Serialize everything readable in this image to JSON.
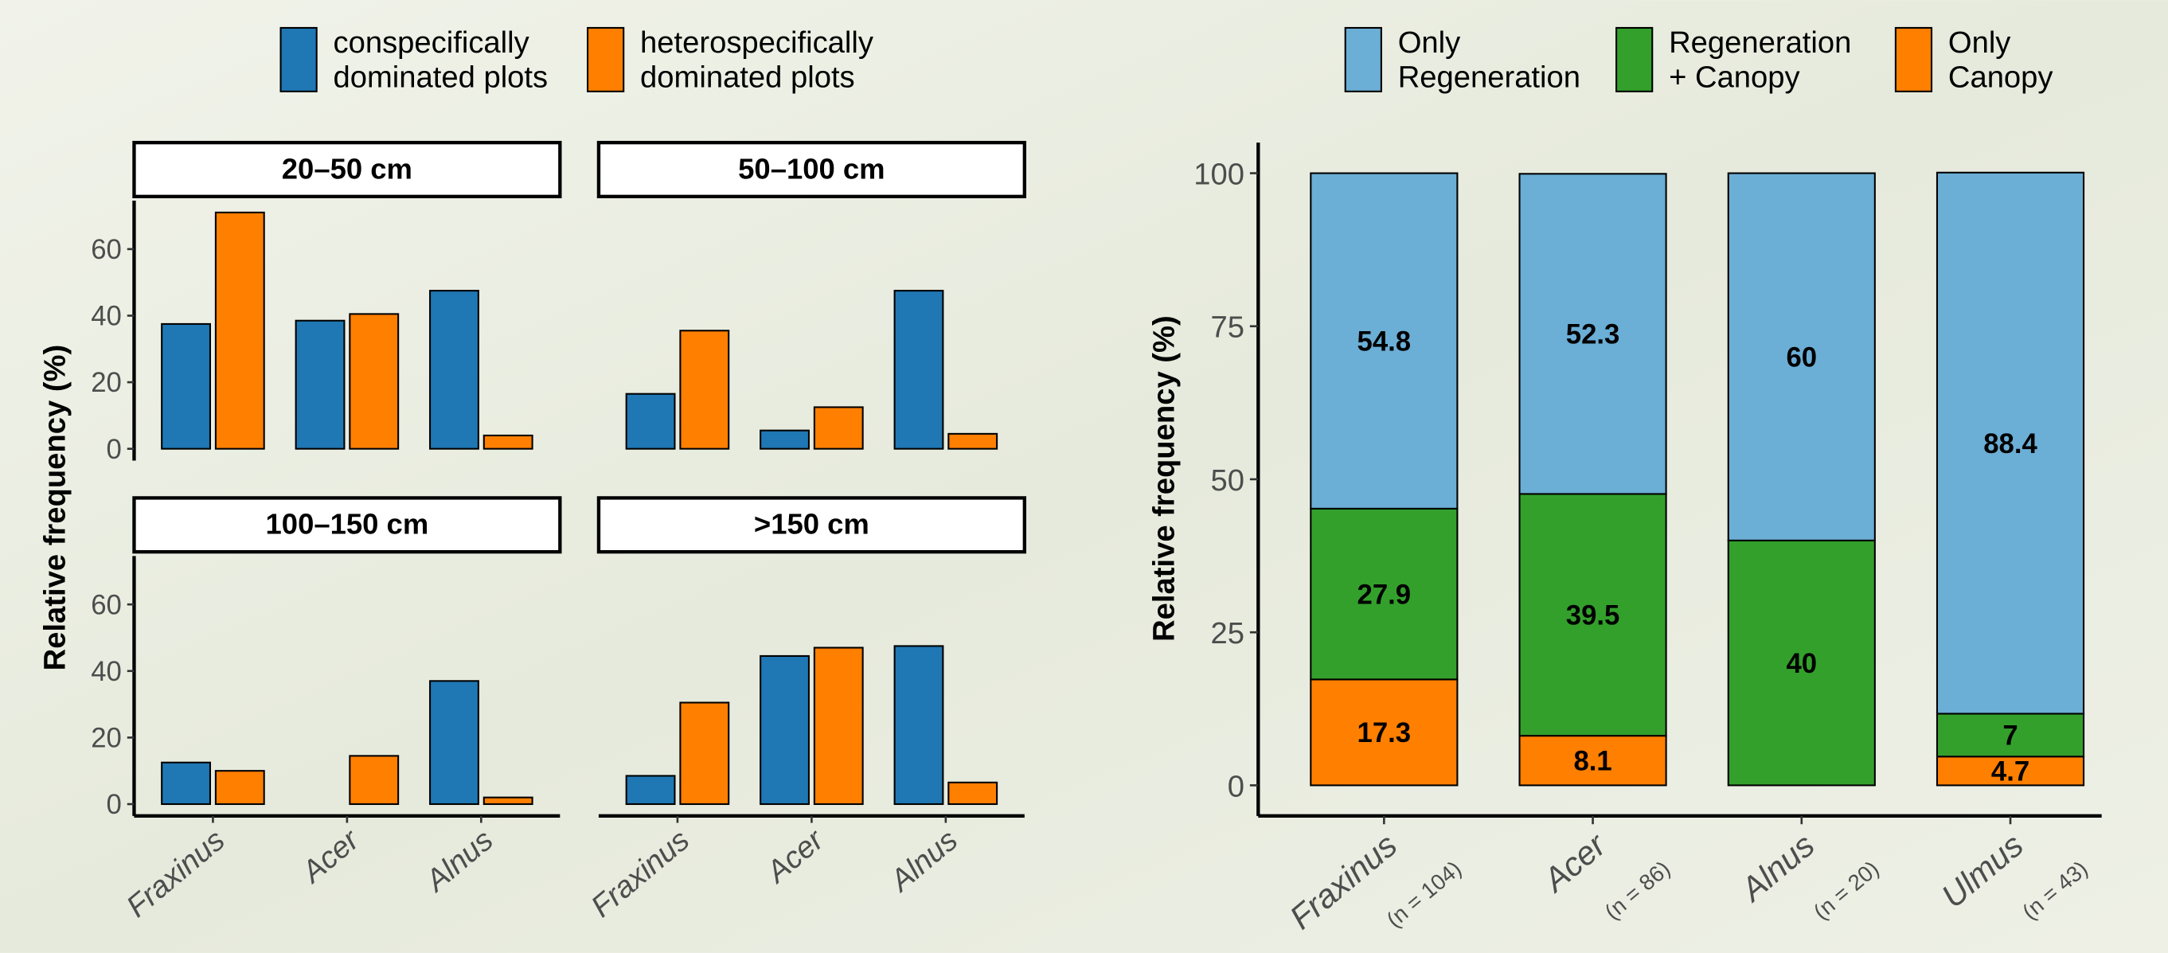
{
  "chart_data": [
    {
      "type": "faceted-bar",
      "ylabel": "Relative frequency (%)",
      "categories": [
        "Fraxinus",
        "Acer",
        "Alnus"
      ],
      "series": [
        {
          "name": "conspecifically\ndominated plots",
          "color": "#1f78b4"
        },
        {
          "name": "heterospecifically\ndominated plots",
          "color": "#ff7f00"
        }
      ],
      "ylim": [
        -3.55,
        74.55
      ],
      "yticks": [
        0,
        20,
        40,
        60
      ],
      "facets": [
        {
          "title": "20–50 cm",
          "series": [
            [
              37.5,
              38.5,
              47.5
            ],
            [
              71,
              40.5,
              4
            ]
          ]
        },
        {
          "title": "50–100 cm",
          "series": [
            [
              16.5,
              5.5,
              47.5
            ],
            [
              35.5,
              12.5,
              4.5
            ]
          ]
        },
        {
          "title": "100–150 cm",
          "series": [
            [
              12.5,
              0,
              37
            ],
            [
              10,
              14.5,
              2
            ]
          ]
        },
        {
          "title": ">150 cm",
          "series": [
            [
              8.5,
              44.5,
              47.5
            ],
            [
              30.5,
              47,
              6.5
            ]
          ]
        }
      ]
    },
    {
      "type": "stacked-bar",
      "ylabel": "Relative frequency (%)",
      "categories": [
        "Fraxinus",
        "Acer",
        "Alnus",
        "Ulmus"
      ],
      "category_notes": [
        "(n = 104)",
        "(n = 86)",
        "(n = 20)",
        "(n = 43)"
      ],
      "series": [
        {
          "name": "Only\nRegeneration",
          "color": "#6baed6",
          "values": [
            54.8,
            52.3,
            60,
            88.4
          ]
        },
        {
          "name": "Regeneration\n+ Canopy",
          "color": "#33a02c",
          "values": [
            27.9,
            39.5,
            40,
            7
          ]
        },
        {
          "name": "Only\nCanopy",
          "color": "#ff7f00",
          "values": [
            17.3,
            8.1,
            0,
            4.7
          ]
        }
      ],
      "ylim": [
        -5,
        105
      ],
      "yticks": [
        0,
        25,
        50,
        75,
        100
      ]
    }
  ]
}
